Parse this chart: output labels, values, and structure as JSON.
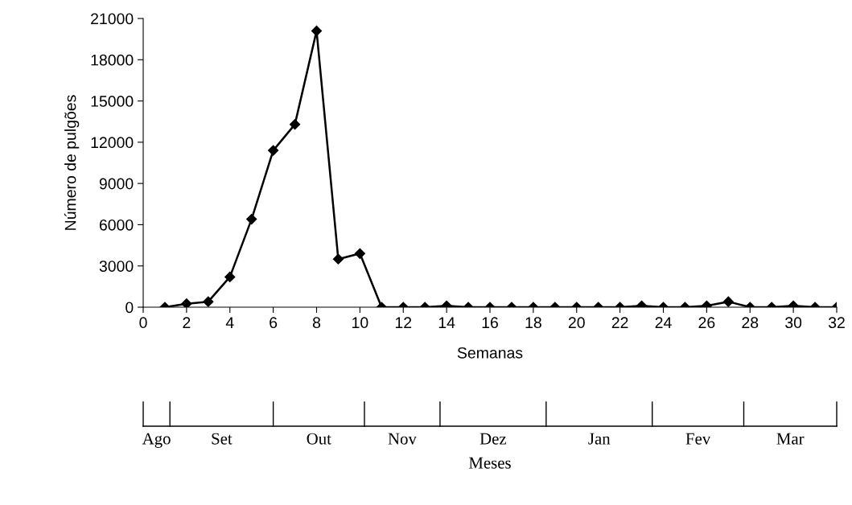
{
  "chart_data": {
    "type": "line",
    "xlabel": "Semanas",
    "ylabel": "Número de pulgões",
    "x": [
      1,
      2,
      3,
      4,
      5,
      6,
      7,
      8,
      9,
      10,
      11,
      12,
      13,
      14,
      15,
      16,
      17,
      18,
      19,
      20,
      21,
      22,
      23,
      24,
      25,
      26,
      27,
      28,
      29,
      30,
      31,
      32
    ],
    "series": [
      {
        "color": "#000000",
        "values": [
          0,
          250,
          400,
          2200,
          6400,
          11400,
          13300,
          20100,
          3500,
          3900,
          0,
          0,
          0,
          100,
          0,
          0,
          0,
          0,
          0,
          0,
          0,
          0,
          100,
          0,
          0,
          100,
          400,
          0,
          0,
          100,
          0,
          0
        ]
      }
    ],
    "xlim": [
      0,
      32
    ],
    "xticks": [
      0,
      2,
      4,
      6,
      8,
      10,
      12,
      14,
      16,
      18,
      20,
      22,
      24,
      26,
      28,
      30,
      32
    ],
    "ylim": [
      0,
      21000
    ],
    "yticks": [
      0,
      3000,
      6000,
      9000,
      12000,
      15000,
      18000,
      21000
    ],
    "annotations": [
      "Ago",
      "Set",
      "Out",
      "Nov",
      "Dez",
      "Jan",
      "Fev",
      "Mar",
      "Meses"
    ],
    "marker": "diamond",
    "line_style": "solid",
    "grid": false,
    "legend": false
  }
}
